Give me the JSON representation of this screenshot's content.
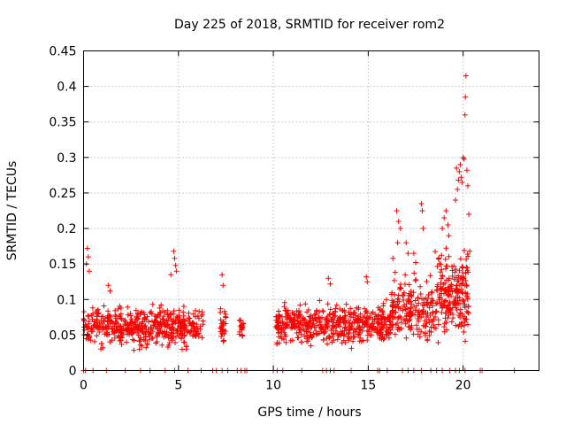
{
  "chart_data": {
    "type": "scatter",
    "title": "Day 225 of 2018, SRMTID for receiver rom2",
    "xlabel": "GPS time / hours",
    "ylabel": "SRMTID / TECUs",
    "xlim": [
      0,
      24
    ],
    "ylim": [
      0,
      0.45
    ],
    "x_ticks": [
      0,
      5,
      10,
      15,
      20
    ],
    "x_tick_labels": [
      "0",
      "5",
      "10",
      "15",
      "20"
    ],
    "y_ticks": [
      0,
      0.05,
      0.1,
      0.15,
      0.2,
      0.25,
      0.3,
      0.35,
      0.4,
      0.45
    ],
    "y_tick_labels": [
      "0",
      "0.05",
      "0.1",
      "0.15",
      "0.2",
      "0.25",
      "0.3",
      "0.35",
      "0.4",
      "0.45"
    ],
    "grid": true,
    "marker": "+",
    "color": "#ff0000",
    "series": [
      {
        "name": "SRMTID",
        "segments": [
          {
            "start": 0.0,
            "end": 6.3,
            "base": 0.062,
            "spread": 0.022,
            "count": 520
          },
          {
            "start": 7.2,
            "end": 7.5,
            "base": 0.065,
            "spread": 0.022,
            "count": 30
          },
          {
            "start": 8.2,
            "end": 8.45,
            "base": 0.062,
            "spread": 0.012,
            "count": 22
          },
          {
            "start": 10.1,
            "end": 16.2,
            "base": 0.065,
            "spread": 0.022,
            "count": 520
          },
          {
            "start": 16.2,
            "end": 18.5,
            "base": 0.085,
            "spread": 0.035,
            "count": 200
          },
          {
            "start": 18.5,
            "end": 20.3,
            "base": 0.11,
            "spread": 0.05,
            "count": 220
          }
        ],
        "extremes": [
          {
            "x": 0.2,
            "y": 0.172
          },
          {
            "x": 0.25,
            "y": 0.16
          },
          {
            "x": 0.15,
            "y": 0.15
          },
          {
            "x": 0.3,
            "y": 0.14
          },
          {
            "x": 1.3,
            "y": 0.12
          },
          {
            "x": 1.4,
            "y": 0.112
          },
          {
            "x": 4.6,
            "y": 0.135
          },
          {
            "x": 4.75,
            "y": 0.168
          },
          {
            "x": 4.8,
            "y": 0.158
          },
          {
            "x": 4.85,
            "y": 0.148
          },
          {
            "x": 4.9,
            "y": 0.14
          },
          {
            "x": 7.3,
            "y": 0.135
          },
          {
            "x": 7.35,
            "y": 0.12
          },
          {
            "x": 12.9,
            "y": 0.13
          },
          {
            "x": 13.0,
            "y": 0.122
          },
          {
            "x": 14.9,
            "y": 0.132
          },
          {
            "x": 14.95,
            "y": 0.125
          },
          {
            "x": 16.3,
            "y": 0.158
          },
          {
            "x": 16.5,
            "y": 0.225
          },
          {
            "x": 16.6,
            "y": 0.21
          },
          {
            "x": 16.7,
            "y": 0.2
          },
          {
            "x": 16.55,
            "y": 0.18
          },
          {
            "x": 17.0,
            "y": 0.18
          },
          {
            "x": 17.1,
            "y": 0.165
          },
          {
            "x": 17.4,
            "y": 0.165
          },
          {
            "x": 17.5,
            "y": 0.152
          },
          {
            "x": 17.8,
            "y": 0.235
          },
          {
            "x": 17.85,
            "y": 0.225
          },
          {
            "x": 17.9,
            "y": 0.2
          },
          {
            "x": 18.9,
            "y": 0.2
          },
          {
            "x": 19.0,
            "y": 0.215
          },
          {
            "x": 19.1,
            "y": 0.225
          },
          {
            "x": 19.2,
            "y": 0.205
          },
          {
            "x": 19.25,
            "y": 0.19
          },
          {
            "x": 19.6,
            "y": 0.24
          },
          {
            "x": 19.7,
            "y": 0.255
          },
          {
            "x": 19.75,
            "y": 0.268
          },
          {
            "x": 19.65,
            "y": 0.285
          },
          {
            "x": 19.8,
            "y": 0.28
          },
          {
            "x": 19.85,
            "y": 0.29
          },
          {
            "x": 19.9,
            "y": 0.272
          },
          {
            "x": 19.95,
            "y": 0.265
          },
          {
            "x": 20.0,
            "y": 0.3
          },
          {
            "x": 20.05,
            "y": 0.298
          },
          {
            "x": 20.1,
            "y": 0.36
          },
          {
            "x": 20.12,
            "y": 0.385
          },
          {
            "x": 20.15,
            "y": 0.415
          },
          {
            "x": 20.2,
            "y": 0.282
          },
          {
            "x": 20.25,
            "y": 0.26
          },
          {
            "x": 20.3,
            "y": 0.22
          },
          {
            "x": 20.35,
            "y": 0.168
          }
        ],
        "zeros": [
          0.0,
          0.1,
          0.5,
          1.2,
          2.2,
          3.0,
          3.5,
          4.3,
          4.8,
          5.5,
          6.2,
          6.8,
          7.0,
          7.3,
          7.6,
          8.1,
          8.3,
          8.5,
          8.6,
          10.0,
          10.2,
          10.5,
          11.5,
          12.6,
          12.8,
          13.0,
          13.2,
          14.1,
          15.5,
          15.6,
          16.0,
          16.8,
          17.1,
          17.4,
          17.8,
          18.3,
          18.6,
          18.9,
          19.3,
          19.6,
          19.8,
          20.1,
          20.9,
          21.0,
          22.7
        ]
      }
    ]
  }
}
